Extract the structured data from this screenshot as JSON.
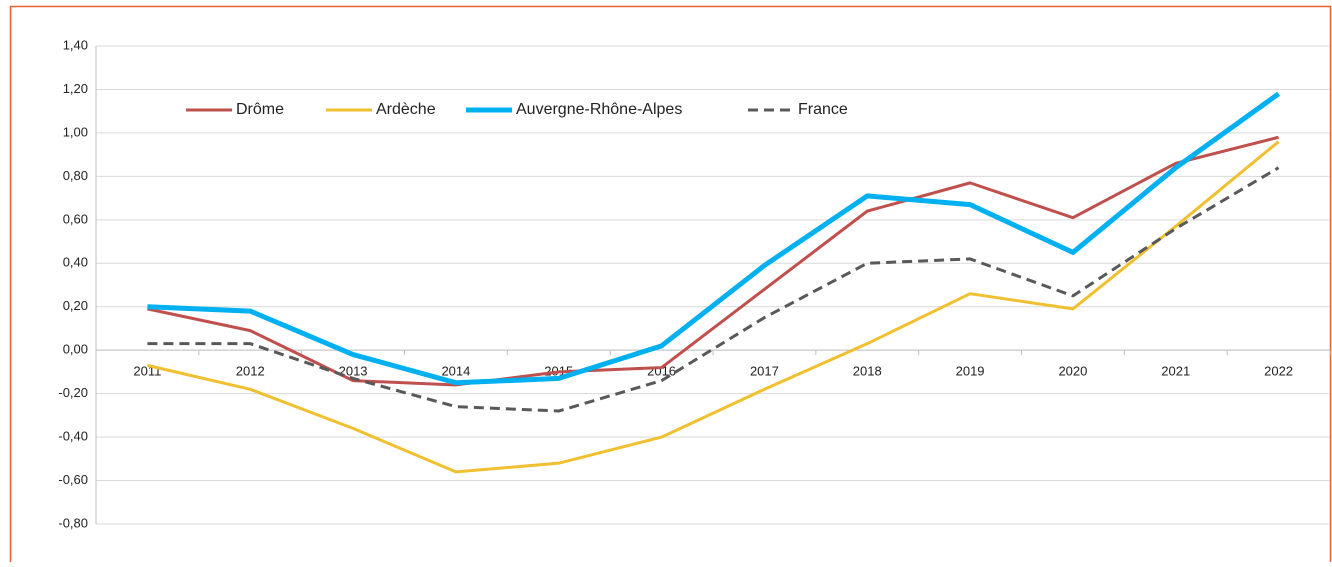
{
  "chart_data": {
    "type": "line",
    "categories": [
      "2011",
      "2012",
      "2013",
      "2014",
      "2015",
      "2016",
      "2017",
      "2018",
      "2019",
      "2020",
      "2021",
      "2022"
    ],
    "series": [
      {
        "name": "Drôme",
        "color": "#c0504d",
        "values": [
          0.19,
          0.09,
          -0.14,
          -0.16,
          -0.1,
          -0.08,
          0.28,
          0.64,
          0.77,
          0.61,
          0.86,
          0.98
        ]
      },
      {
        "name": "Ardèche",
        "color": "#f0c030",
        "values": [
          -0.07,
          -0.18,
          -0.36,
          -0.56,
          -0.52,
          -0.4,
          -0.18,
          0.03,
          0.26,
          0.19,
          0.57,
          0.96
        ]
      },
      {
        "name": "Auvergne-Rhône-Alpes",
        "color": "#00b0f0",
        "values": [
          0.2,
          0.18,
          -0.02,
          -0.15,
          -0.13,
          0.02,
          0.39,
          0.71,
          0.67,
          0.45,
          0.84,
          1.18
        ]
      },
      {
        "name": "France",
        "color": "#595959",
        "dashed": true,
        "values": [
          0.03,
          0.03,
          -0.13,
          -0.26,
          -0.28,
          -0.14,
          0.15,
          0.4,
          0.42,
          0.25,
          0.56,
          0.84
        ]
      }
    ],
    "ylim": [
      -0.8,
      1.4
    ],
    "yticks": [
      {
        "value": -0.8,
        "label": "-0,80"
      },
      {
        "value": -0.6,
        "label": "-0,60"
      },
      {
        "value": -0.4,
        "label": "-0,40"
      },
      {
        "value": -0.2,
        "label": "-0,20"
      },
      {
        "value": 0,
        "label": "0,00"
      },
      {
        "value": 0.2,
        "label": "0,20"
      },
      {
        "value": 0.4,
        "label": "0,40"
      },
      {
        "value": 0.6,
        "label": "0,60"
      },
      {
        "value": 0.8,
        "label": "0,80"
      },
      {
        "value": 1.0,
        "label": "1,00"
      },
      {
        "value": 1.2,
        "label": "1,20"
      },
      {
        "value": 1.4,
        "label": "1,40"
      }
    ],
    "grid": true,
    "legend": "top-left"
  }
}
